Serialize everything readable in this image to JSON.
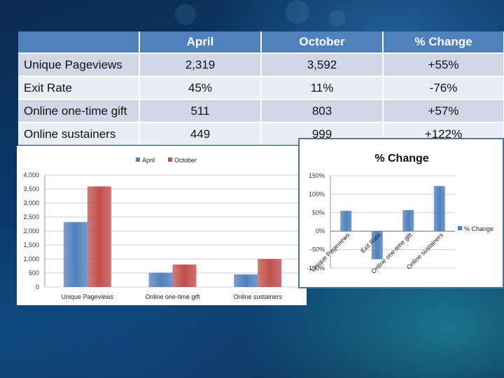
{
  "table": {
    "headers": [
      "",
      "April",
      "October",
      "% Change"
    ],
    "rows": [
      [
        "Unique Pageviews",
        "2,319",
        "3,592",
        "+55%"
      ],
      [
        "Exit Rate",
        "45%",
        "11%",
        "-76%"
      ],
      [
        "Online one-time gift",
        "511",
        "803",
        "+57%"
      ],
      [
        "Online sustainers",
        "449",
        "999",
        "+122%"
      ]
    ]
  },
  "chart_data": [
    {
      "type": "bar",
      "title": "",
      "xlabel": "",
      "ylabel": "",
      "categories": [
        "Unique Pageviews",
        "Online one-time gift",
        "Online sustainers"
      ],
      "series": [
        {
          "name": "April",
          "values": [
            2319,
            511,
            449
          ],
          "color": "#4f81bd"
        },
        {
          "name": "October",
          "values": [
            3592,
            803,
            999
          ],
          "color": "#c0504d"
        }
      ],
      "ylim": [
        0,
        4000
      ],
      "yticks": [
        0,
        500,
        1000,
        1500,
        2000,
        2500,
        3000,
        3500,
        4000
      ],
      "ytick_labels": [
        "0",
        "500",
        "1,000",
        "1,500",
        "2,000",
        "2,500",
        "3,000",
        "3,500",
        "4,000"
      ],
      "legend": "top",
      "grid": true
    },
    {
      "type": "bar",
      "title": "% Change",
      "xlabel": "",
      "ylabel": "",
      "categories": [
        "Unique Pageviews",
        "Exit Rate",
        "Online one-time gift",
        "Online sustainers"
      ],
      "series": [
        {
          "name": "% Change",
          "values": [
            55,
            -76,
            57,
            122
          ],
          "color": "#4f81bd"
        }
      ],
      "ylim": [
        -100,
        150
      ],
      "yticks": [
        -100,
        -50,
        0,
        50,
        100,
        150
      ],
      "ytick_labels": [
        "-100%",
        "-50%",
        "0%",
        "50%",
        "100%",
        "150%"
      ],
      "legend": "right",
      "grid": true
    }
  ]
}
